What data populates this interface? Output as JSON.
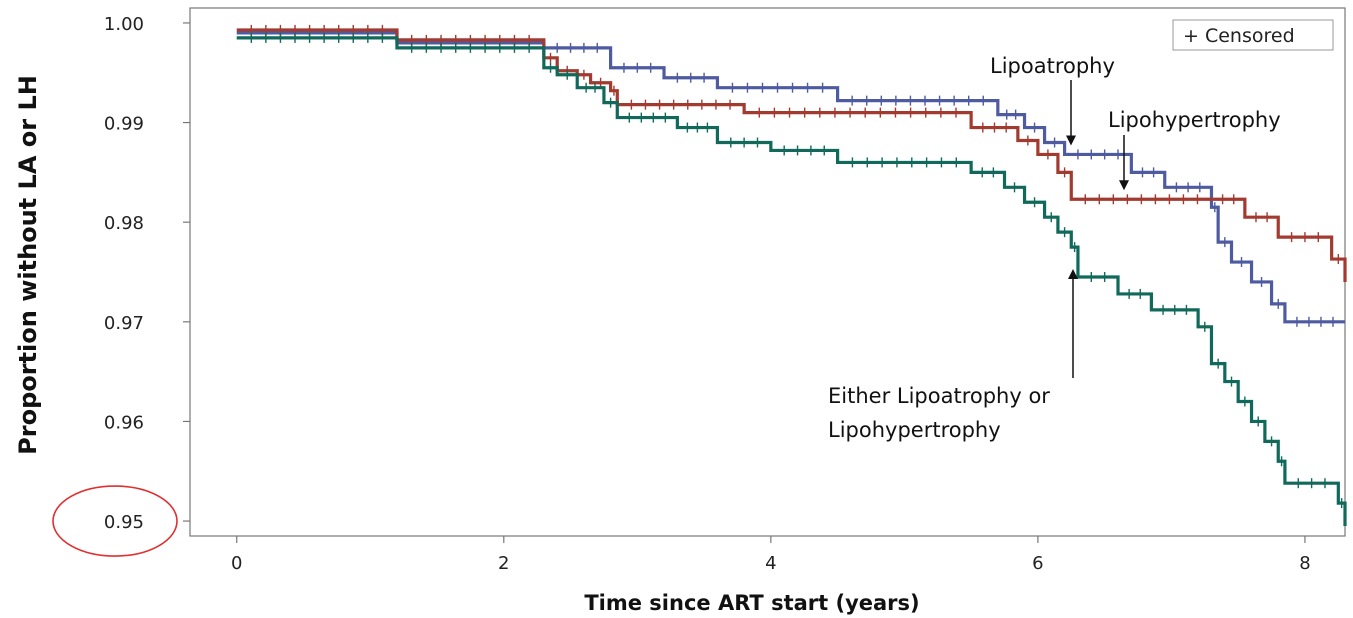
{
  "chart_data": {
    "type": "line",
    "xlabel": "Time since ART start (years)",
    "ylabel": "Proportion without LA or LH",
    "xlim": [
      -0.35,
      8.3
    ],
    "ylim": [
      0.9485,
      1.0015
    ],
    "x_ticks": [
      0,
      2,
      4,
      6,
      8
    ],
    "y_ticks": [
      "0.95",
      "0.96",
      "0.97",
      "0.98",
      "0.99",
      "1.00"
    ],
    "grid": false,
    "step": true,
    "legend": {
      "label": "+ Censored",
      "position": "top-right"
    },
    "annotations": [
      {
        "id": "lipoatrophy",
        "lines": [
          "Lipoatrophy"
        ],
        "arrow_to": [
          6.3,
          0.9875
        ]
      },
      {
        "id": "lipohypertrophy",
        "lines": [
          "Lipohypertrophy"
        ],
        "arrow_to": [
          6.65,
          0.983
        ]
      },
      {
        "id": "either",
        "lines": [
          "Either Lipoatrophy or",
          "Lipohypertrophy"
        ],
        "arrow_to": [
          6.3,
          0.9755
        ]
      }
    ],
    "highlight": {
      "label": "0.95",
      "shape": "red ellipse"
    },
    "series": [
      {
        "id": "lipoatrophy",
        "color": "#4e5ba0",
        "steps": [
          [
            0,
            0.999
          ],
          [
            1.2,
            0.998
          ],
          [
            2.3,
            0.9975
          ],
          [
            2.8,
            0.9955
          ],
          [
            3.2,
            0.9945
          ],
          [
            3.6,
            0.9935
          ],
          [
            4.5,
            0.9922
          ],
          [
            5.7,
            0.9908
          ],
          [
            5.9,
            0.9895
          ],
          [
            6.05,
            0.988
          ],
          [
            6.2,
            0.9868
          ],
          [
            6.7,
            0.985
          ],
          [
            6.95,
            0.9835
          ],
          [
            7.3,
            0.9815
          ],
          [
            7.35,
            0.978
          ],
          [
            7.45,
            0.976
          ],
          [
            7.6,
            0.974
          ],
          [
            7.75,
            0.9718
          ],
          [
            7.85,
            0.97
          ],
          [
            8.3,
            0.97
          ]
        ]
      },
      {
        "id": "lipohypertrophy",
        "color": "#a33a30",
        "steps": [
          [
            0,
            0.9993
          ],
          [
            1.2,
            0.9983
          ],
          [
            2.3,
            0.9965
          ],
          [
            2.4,
            0.9952
          ],
          [
            2.55,
            0.9948
          ],
          [
            2.65,
            0.994
          ],
          [
            2.8,
            0.9932
          ],
          [
            2.85,
            0.9918
          ],
          [
            3.8,
            0.991
          ],
          [
            5.5,
            0.9895
          ],
          [
            5.85,
            0.9882
          ],
          [
            6.0,
            0.9868
          ],
          [
            6.15,
            0.985
          ],
          [
            6.25,
            0.9823
          ],
          [
            7.3,
            0.9823
          ],
          [
            7.55,
            0.9805
          ],
          [
            7.8,
            0.9785
          ],
          [
            8.2,
            0.9763
          ],
          [
            8.3,
            0.974
          ]
        ]
      },
      {
        "id": "either",
        "color": "#10695a",
        "steps": [
          [
            0,
            0.9985
          ],
          [
            1.2,
            0.9975
          ],
          [
            2.3,
            0.9955
          ],
          [
            2.4,
            0.9948
          ],
          [
            2.55,
            0.9935
          ],
          [
            2.75,
            0.992
          ],
          [
            2.85,
            0.9905
          ],
          [
            3.3,
            0.9895
          ],
          [
            3.6,
            0.988
          ],
          [
            4.0,
            0.9872
          ],
          [
            4.5,
            0.986
          ],
          [
            5.5,
            0.985
          ],
          [
            5.75,
            0.9835
          ],
          [
            5.9,
            0.982
          ],
          [
            6.05,
            0.9805
          ],
          [
            6.15,
            0.979
          ],
          [
            6.25,
            0.9775
          ],
          [
            6.3,
            0.9745
          ],
          [
            6.6,
            0.9728
          ],
          [
            6.85,
            0.9712
          ],
          [
            7.2,
            0.9695
          ],
          [
            7.3,
            0.9658
          ],
          [
            7.4,
            0.964
          ],
          [
            7.5,
            0.962
          ],
          [
            7.6,
            0.96
          ],
          [
            7.7,
            0.958
          ],
          [
            7.8,
            0.956
          ],
          [
            7.85,
            0.9538
          ],
          [
            8.25,
            0.9518
          ],
          [
            8.3,
            0.9495
          ]
        ]
      }
    ]
  }
}
